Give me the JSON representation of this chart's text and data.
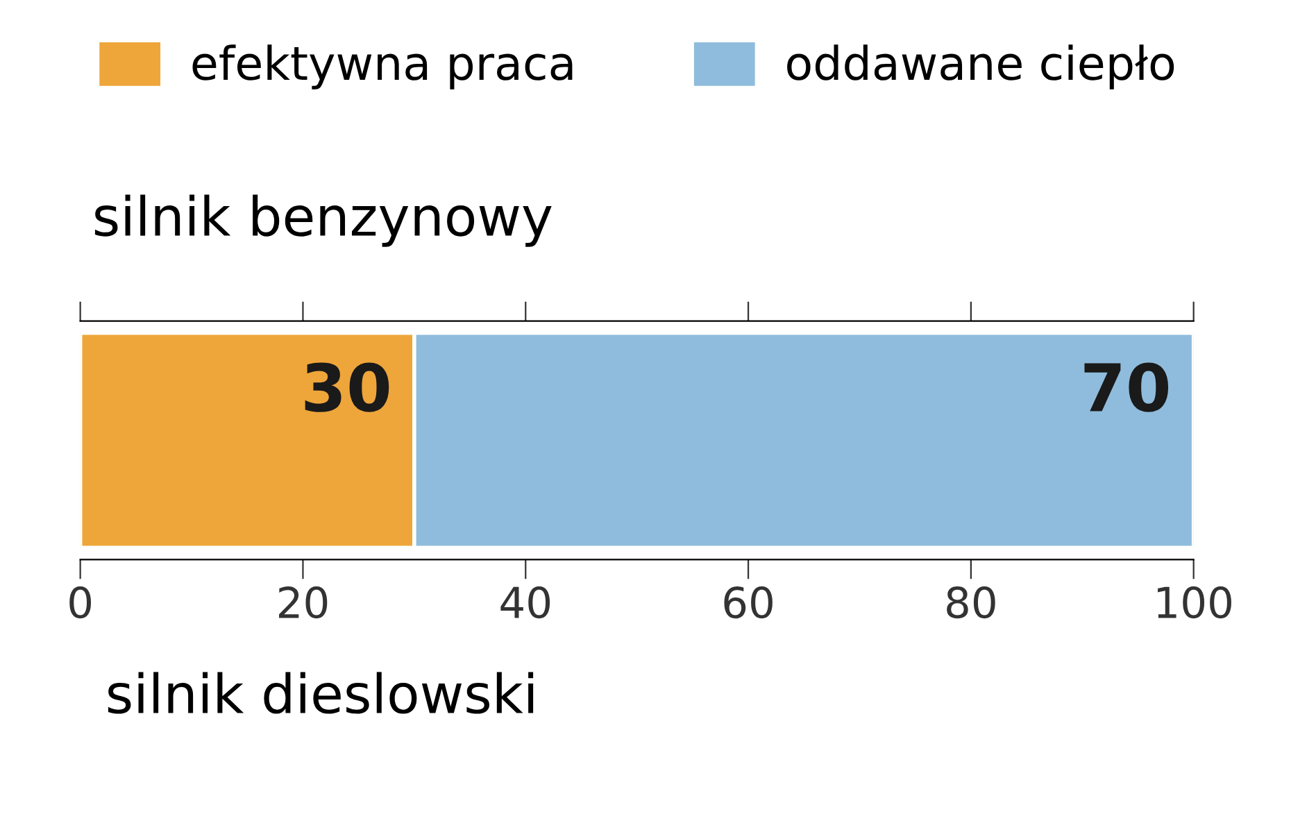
{
  "chart_data": {
    "type": "bar",
    "orientation": "horizontal",
    "stacked": true,
    "title": "silnik benzynowy",
    "categories": [
      null
    ],
    "series": [
      {
        "name": "efektywna praca",
        "color": "#eea63a",
        "values": [
          30
        ]
      },
      {
        "name": "oddawane ciepło",
        "color": "#8fbcdc",
        "values": [
          70
        ]
      }
    ],
    "xlim": [
      0,
      100
    ],
    "xticks": [
      0,
      20,
      40,
      60,
      80,
      100
    ],
    "data_labels": true,
    "legend": "top",
    "grid": false,
    "annotations": [
      "silnik dieslowski"
    ]
  }
}
